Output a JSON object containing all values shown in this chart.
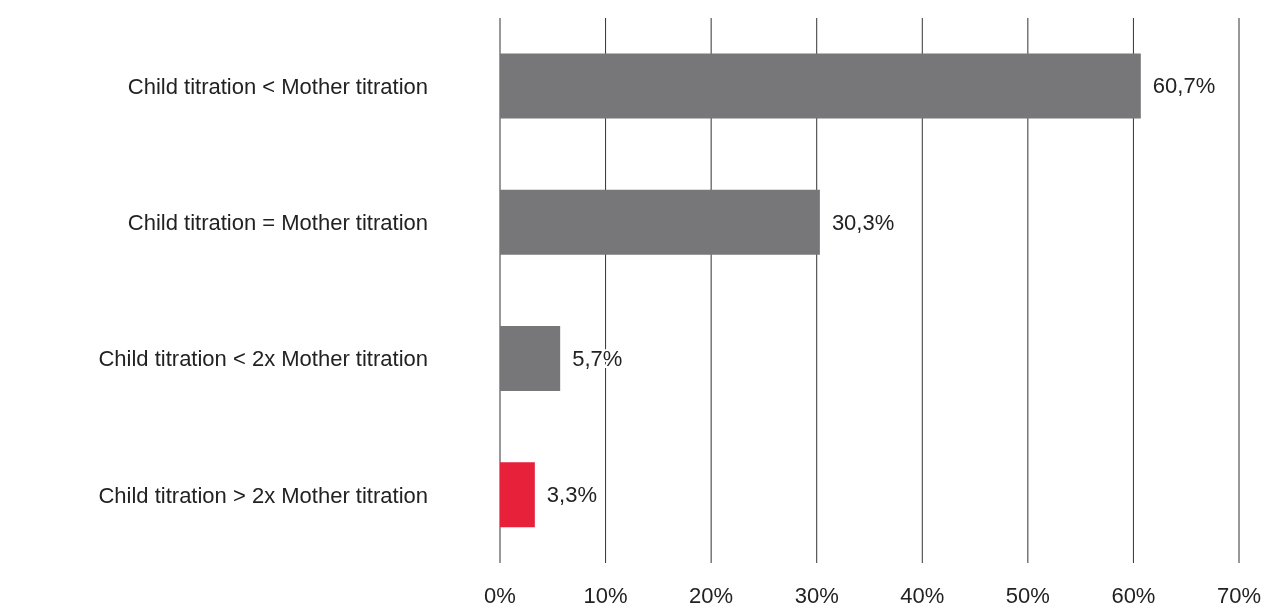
{
  "chart_data": {
    "type": "bar",
    "orientation": "horizontal",
    "categories": [
      "Child titration < Mother titration",
      "Child titration = Mother titration",
      "Child titration < 2x Mother titration",
      "Child titration > 2x Mother titration"
    ],
    "values": [
      60.7,
      30.3,
      5.7,
      3.3
    ],
    "colors": [
      "#77777a",
      "#77777a",
      "#77777a",
      "#e8213a"
    ],
    "value_labels": [
      "60,7%",
      "30,3%",
      "5,7%",
      "3,3%"
    ],
    "xlim": [
      0,
      70
    ],
    "xticks": [
      {
        "value": 0,
        "label": "0%"
      },
      {
        "value": 10,
        "label": "10%"
      },
      {
        "value": 20,
        "label": "20%"
      },
      {
        "value": 30,
        "label": "30%"
      },
      {
        "value": 40,
        "label": "40%"
      },
      {
        "value": 50,
        "label": "50%"
      },
      {
        "value": 60,
        "label": "60%"
      },
      {
        "value": 70,
        "label": "70%"
      }
    ],
    "grid": "x",
    "legend": false
  }
}
